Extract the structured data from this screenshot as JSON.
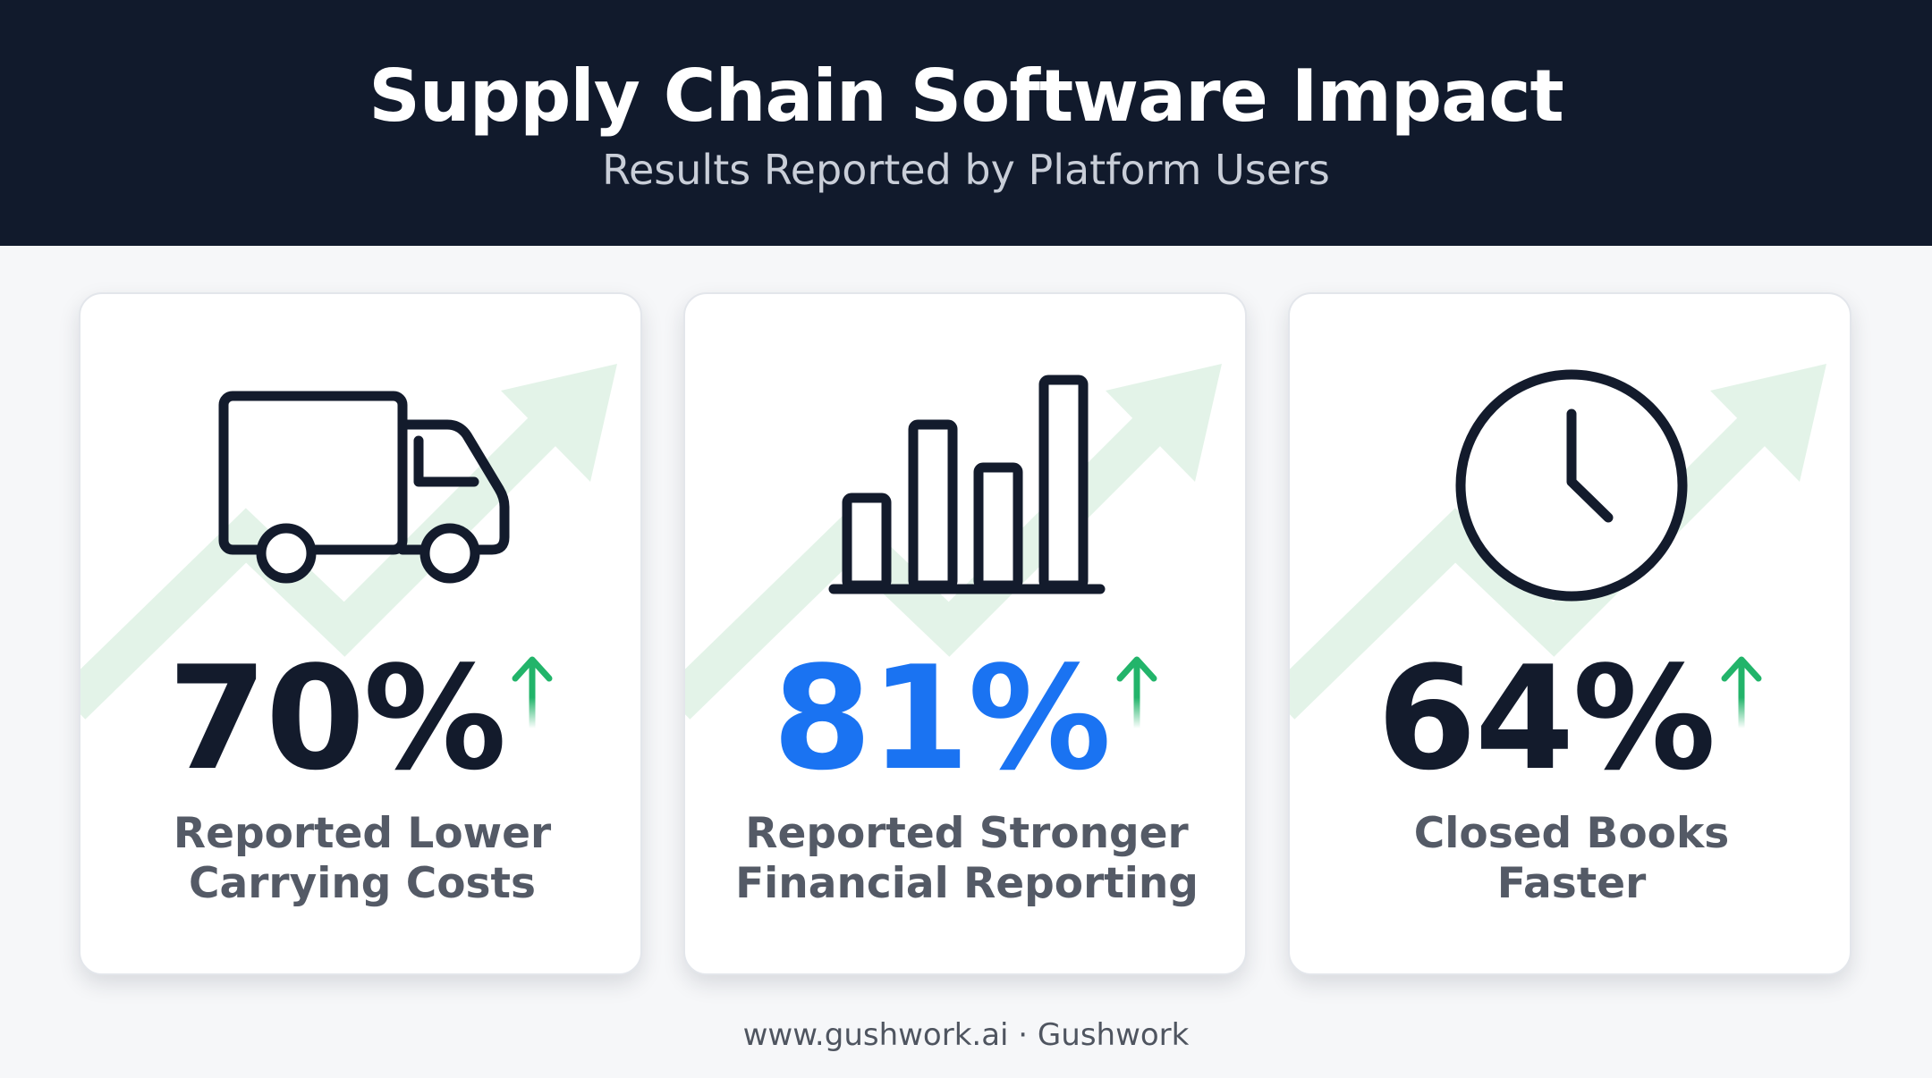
{
  "header": {
    "title": "Supply Chain Software Impact",
    "subtitle": "Results Reported by Platform Users"
  },
  "cards": [
    {
      "icon": "truck-icon",
      "value": "70%",
      "value_color": "#131b2c",
      "trend": "up",
      "label_line1": "Reported Lower",
      "label_line2": "Carrying Costs"
    },
    {
      "icon": "bar-chart-icon",
      "value": "81%",
      "value_color": "#1a73f2",
      "trend": "up",
      "label_line1": "Reported Stronger",
      "label_line2": "Financial Reporting"
    },
    {
      "icon": "clock-icon",
      "value": "64%",
      "value_color": "#131b2c",
      "trend": "up",
      "label_line1": "Closed Books",
      "label_line2": "Faster"
    }
  ],
  "colors": {
    "header_bg": "#111a2c",
    "accent_blue": "#1a73f2",
    "trend_green": "#22b46a",
    "background_arrow_green": "#e3f3e8"
  },
  "footer": {
    "text": "www.gushwork.ai · Gushwork"
  }
}
